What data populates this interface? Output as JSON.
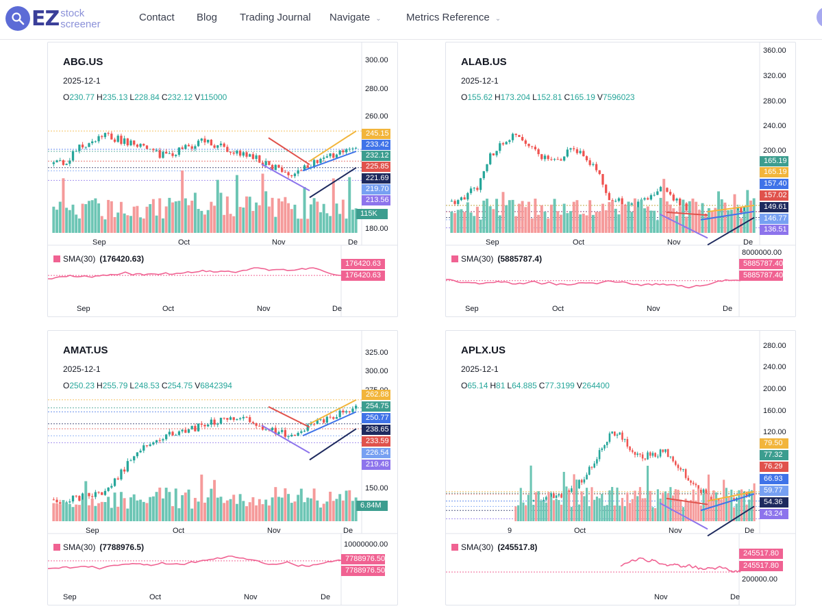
{
  "nav": {
    "logo_ez": "EZ",
    "logo_line1": "stock",
    "logo_line2": "screener",
    "items": [
      {
        "label": "Contact"
      },
      {
        "label": "Blog"
      },
      {
        "label": "Trading Journal"
      },
      {
        "label": "Navigate",
        "dropdown": true
      },
      {
        "label": "Metrics Reference",
        "dropdown": true
      }
    ]
  },
  "colors": {
    "up": "#26a69a",
    "down": "#ef5350",
    "vol_up": "#6cc5b4",
    "vol_down": "#f59a9a",
    "sma": "#f06292",
    "tag_orange": "#f2b53b",
    "tag_green": "#3c9d8f",
    "tag_red": "#e0524c",
    "tag_blue": "#3f73e8",
    "tag_navy": "#1e2a5e",
    "tag_lightblue": "#77a0f2",
    "tag_purple": "#8d74ec"
  },
  "charts": [
    {
      "symbol": "ABG.US",
      "date": "2025-12-1",
      "ohlc": {
        "O": "230.77",
        "H": "235.13",
        "L": "228.84",
        "C": "232.12",
        "V": "115000"
      },
      "sma_label": "SMA(30)",
      "sma_value": "(176420.63)",
      "sma_tags": [
        "176420.63",
        "176420.63"
      ],
      "sma_ticks": [],
      "volume_tag": "115K",
      "price_ticks": [
        "300.00",
        "280.00",
        "260.00",
        "180.00"
      ],
      "xlabels": [
        "Sep",
        "Oct",
        "Nov",
        "De"
      ],
      "sma_xlabels": [
        "Sep",
        "Oct",
        "Nov",
        "De"
      ],
      "level_tags": [
        {
          "text": "245.15",
          "kind": "orange"
        },
        {
          "text": "233.42",
          "kind": "blue"
        },
        {
          "text": "232.12",
          "kind": "green"
        },
        {
          "text": "225.85",
          "kind": "red"
        },
        {
          "text": "221.69",
          "kind": "navy"
        },
        {
          "text": "219.70",
          "kind": "lightblue"
        },
        {
          "text": "213.56",
          "kind": "purple"
        }
      ]
    },
    {
      "symbol": "ALAB.US",
      "date": "2025-12-1",
      "ohlc": {
        "O": "155.62",
        "H": "173.204",
        "L": "152.81",
        "C": "165.19",
        "V": "7596023"
      },
      "sma_label": "SMA(30)",
      "sma_value": "(5885787.4)",
      "sma_tags": [
        "5885787.40",
        "5885787.40"
      ],
      "sma_ticks": [
        "8000000.00"
      ],
      "volume_tag": "",
      "price_ticks": [
        "360.00",
        "320.00",
        "280.00",
        "240.00",
        "200.00"
      ],
      "xlabels": [
        "Sep",
        "Oct",
        "Nov",
        "De"
      ],
      "sma_xlabels": [
        "Sep",
        "Oct",
        "Nov",
        "De"
      ],
      "level_tags": [
        {
          "text": "165.19",
          "kind": "green"
        },
        {
          "text": "165.19",
          "kind": "orange"
        },
        {
          "text": "157.40",
          "kind": "blue"
        },
        {
          "text": "157.02",
          "kind": "red"
        },
        {
          "text": "149.61",
          "kind": "navy"
        },
        {
          "text": "146.77",
          "kind": "lightblue"
        },
        {
          "text": "136.51",
          "kind": "purple"
        }
      ]
    },
    {
      "symbol": "AMAT.US",
      "date": "2025-12-1",
      "ohlc": {
        "O": "250.23",
        "H": "255.79",
        "L": "248.53",
        "C": "254.75",
        "V": "6842394"
      },
      "sma_label": "SMA(30)",
      "sma_value": "(7788976.5)",
      "sma_tags": [
        "7788976.50",
        "7788976.50"
      ],
      "sma_ticks": [
        "10000000.00"
      ],
      "volume_tag": "6.84M",
      "price_ticks": [
        "325.00",
        "300.00",
        "275.00",
        "150.00"
      ],
      "xlabels": [
        "Sep",
        "Oct",
        "Nov",
        "De"
      ],
      "sma_xlabels": [
        "Sep",
        "Oct",
        "Nov",
        "De"
      ],
      "level_tags": [
        {
          "text": "262.88",
          "kind": "orange"
        },
        {
          "text": "254.75",
          "kind": "green"
        },
        {
          "text": "250.77",
          "kind": "blue"
        },
        {
          "text": "238.65",
          "kind": "navy"
        },
        {
          "text": "233.59",
          "kind": "red"
        },
        {
          "text": "226.54",
          "kind": "lightblue"
        },
        {
          "text": "219.48",
          "kind": "purple"
        }
      ]
    },
    {
      "symbol": "APLX.US",
      "date": "2025-12-1",
      "ohlc": {
        "O": "65.14",
        "H": "81",
        "L": "64.885",
        "C": "77.3199",
        "V": "264400"
      },
      "sma_label": "SMA(30)",
      "sma_value": "(245517.8)",
      "sma_tags": [
        "245517.80",
        "245517.80"
      ],
      "sma_ticks": [
        "200000.00"
      ],
      "volume_tag": "",
      "price_ticks": [
        "280.00",
        "240.00",
        "200.00",
        "160.00",
        "120.00"
      ],
      "xlabels": [
        "9",
        "Oct",
        "Nov",
        "De"
      ],
      "sma_xlabels": [
        "Nov",
        "De"
      ],
      "level_tags": [
        {
          "text": "79.50",
          "kind": "orange"
        },
        {
          "text": "77.32",
          "kind": "green"
        },
        {
          "text": "76.29",
          "kind": "red"
        },
        {
          "text": "66.93",
          "kind": "blue"
        },
        {
          "text": "59.77",
          "kind": "lightblue"
        },
        {
          "text": "54.36",
          "kind": "navy"
        },
        {
          "text": "43.24",
          "kind": "purple"
        }
      ]
    }
  ],
  "chart_data": [
    {
      "type": "candlestick",
      "title": "ABG.US",
      "date": "2025-12-1",
      "x": [
        "Sep",
        "Oct",
        "Nov",
        "Dec"
      ],
      "ylim": [
        180,
        300
      ],
      "close_series": [
        224,
        226,
        234,
        238,
        242,
        240,
        238,
        236,
        231,
        229,
        233,
        236,
        239,
        236,
        233,
        231,
        228,
        224,
        220,
        218,
        222,
        226,
        229,
        231,
        232
      ],
      "last": {
        "open": 230.77,
        "high": 235.13,
        "low": 228.84,
        "close": 232.12,
        "volume": 115000
      },
      "levels": [
        245.15,
        233.42,
        232.12,
        225.85,
        221.69,
        219.7,
        213.56
      ],
      "sma30_volume": 176420.63
    },
    {
      "type": "candlestick",
      "title": "ALAB.US",
      "date": "2025-12-1",
      "x": [
        "Sep",
        "Oct",
        "Nov",
        "Dec"
      ],
      "ylim": [
        130,
        370
      ],
      "close_series": [
        170,
        176,
        190,
        230,
        248,
        255,
        238,
        225,
        222,
        236,
        232,
        212,
        176,
        168,
        164,
        178,
        190,
        174,
        160,
        150,
        148,
        154,
        160,
        165
      ],
      "last": {
        "open": 155.62,
        "high": 173.204,
        "low": 152.81,
        "close": 165.19,
        "volume": 7596023
      },
      "levels": [
        165.19,
        165.19,
        157.4,
        157.02,
        149.61,
        146.77,
        136.51
      ],
      "sma30_volume": 5885787.4
    },
    {
      "type": "candlestick",
      "title": "AMAT.US",
      "date": "2025-12-1",
      "x": [
        "Sep",
        "Oct",
        "Nov",
        "Dec"
      ],
      "ylim": [
        140,
        330
      ],
      "close_series": [
        162,
        161,
        164,
        166,
        172,
        186,
        205,
        216,
        224,
        228,
        230,
        236,
        240,
        242,
        244,
        241,
        236,
        230,
        228,
        234,
        240,
        246,
        250,
        255
      ],
      "last": {
        "open": 250.23,
        "high": 255.79,
        "low": 248.53,
        "close": 254.75,
        "volume": 6842394
      },
      "levels": [
        262.88,
        254.75,
        250.77,
        238.65,
        233.59,
        226.54,
        219.48
      ],
      "sma30_volume": 7788976.5
    },
    {
      "type": "candlestick",
      "title": "APLX.US",
      "date": "2025-12-1",
      "x": [
        "9",
        "Oct",
        "Nov",
        "Dec"
      ],
      "ylim": [
        40,
        290
      ],
      "close_series": [
        56,
        60,
        66,
        72,
        74,
        82,
        96,
        122,
        150,
        160,
        136,
        126,
        128,
        134,
        118,
        100,
        84,
        72,
        68,
        70,
        74,
        77
      ],
      "last": {
        "open": 65.14,
        "high": 81,
        "low": 64.885,
        "close": 77.3199,
        "volume": 264400
      },
      "levels": [
        79.5,
        77.32,
        76.29,
        66.93,
        59.77,
        54.36,
        43.24
      ],
      "sma30_volume": 245517.8
    }
  ]
}
